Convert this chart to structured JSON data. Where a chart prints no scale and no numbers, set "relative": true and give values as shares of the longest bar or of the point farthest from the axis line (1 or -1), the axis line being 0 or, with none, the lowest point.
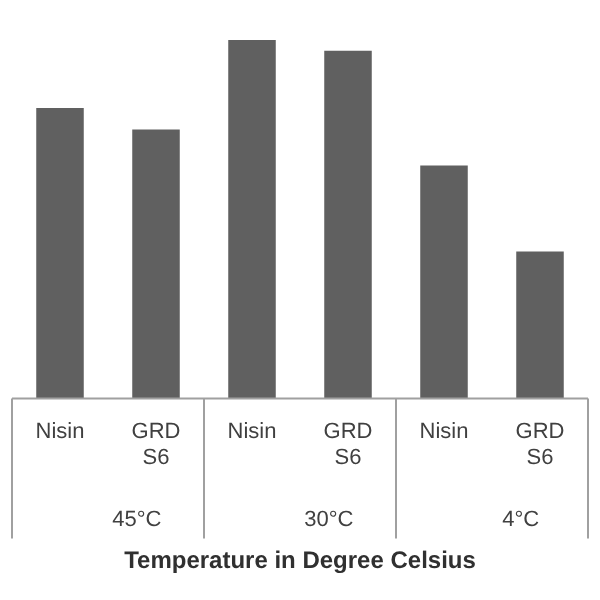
{
  "chart_data": {
    "type": "bar",
    "relative": true,
    "xlabel": "Temperature in Degree Celsius",
    "categories": [
      "Nisin",
      "GRD S6",
      "Nisin",
      "GRD S6",
      "Nisin",
      "GRD S6"
    ],
    "values": [
      0.81,
      0.75,
      1,
      0.97,
      0.65,
      0.41
    ],
    "color": "#606060",
    "annotations": [
      "45°C",
      "30°C",
      "4°C"
    ],
    "grid": false,
    "legend": false
  }
}
